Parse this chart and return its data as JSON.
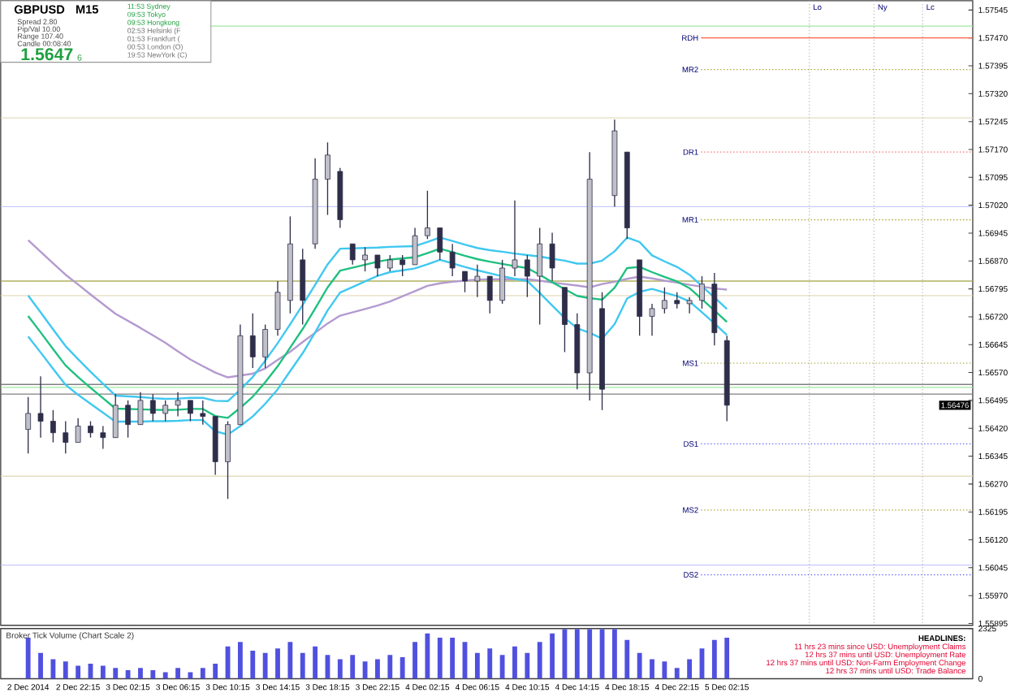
{
  "chart_data": [
    {
      "type": "candlestick",
      "title": "GBPUSD",
      "subtitle": "M15",
      "color": "#2e2e4a",
      "ylim": [
        1.5589,
        1.5757
      ],
      "tick_labels": "y",
      "categories": [
        null,
        null,
        null,
        null,
        null,
        null,
        null,
        null,
        null,
        null,
        null,
        null,
        null,
        null,
        null,
        null,
        null,
        null,
        null,
        null,
        null,
        null,
        null,
        null,
        null,
        null,
        null,
        null,
        null,
        null,
        null,
        null,
        null,
        null,
        null,
        null,
        null,
        null,
        null,
        null,
        null,
        null,
        null,
        null,
        null,
        null,
        null,
        null,
        null,
        null,
        null,
        null,
        null,
        null,
        null,
        null,
        null,
        null,
        null,
        null,
        null,
        null,
        null,
        null,
        null,
        null,
        null,
        null,
        null,
        null,
        null,
        null,
        null,
        null,
        null,
        null
      ],
      "yticks": [
        1.55895,
        {
          "value": 1.5597,
          "label": "1.55970"
        },
        1.56045,
        {
          "value": 1.5612,
          "label": "1.56120"
        },
        1.56195,
        {
          "value": 1.5627,
          "label": "1.56270"
        },
        1.56345,
        {
          "value": 1.5642,
          "label": "1.56420"
        },
        1.56495,
        {
          "value": 1.5657,
          "label": "1.56570"
        },
        1.56645,
        {
          "value": 1.5672,
          "label": "1.56720"
        },
        1.56795,
        {
          "value": 1.5687,
          "label": "1.56870"
        },
        1.56945,
        {
          "value": 1.5702,
          "label": "1.57020"
        },
        1.57095,
        {
          "value": 1.5717,
          "label": "1.57170"
        },
        1.57245,
        {
          "value": 1.5732,
          "label": "1.57320"
        },
        1.57395,
        {
          "value": 1.5747,
          "label": "1.57470"
        },
        1.57545
      ],
      "ohlc": [
        [
          1.56417,
          1.56504,
          1.56352,
          1.5646
        ],
        [
          1.5646,
          1.5656,
          1.56395,
          1.56439
        ],
        [
          1.56439,
          1.56469,
          1.56382,
          1.56408
        ],
        [
          1.56408,
          1.56439,
          1.56352,
          1.56382
        ],
        [
          1.56382,
          1.56447,
          1.56382,
          1.56426
        ],
        [
          1.56426,
          1.56439,
          1.56395,
          1.56408
        ],
        [
          1.56408,
          1.56426,
          1.56365,
          1.56395
        ],
        [
          1.56395,
          1.56512,
          1.56395,
          1.56482
        ],
        [
          1.56482,
          1.56495,
          1.56395,
          1.5643
        ],
        [
          1.5643,
          1.56517,
          1.5643,
          1.56495
        ],
        [
          1.56495,
          1.56512,
          1.56439,
          1.5646
        ],
        [
          1.5646,
          1.56495,
          1.56439,
          1.56482
        ],
        [
          1.56482,
          1.56517,
          1.56452,
          1.56495
        ],
        [
          1.56495,
          1.56495,
          1.56439,
          1.5646
        ],
        [
          1.5646,
          1.56495,
          1.5643,
          1.56452
        ],
        [
          1.56452,
          1.56452,
          1.56295,
          1.5633
        ],
        [
          1.5633,
          1.56439,
          1.5623,
          1.5643
        ],
        [
          1.5643,
          1.56699,
          1.5643,
          1.56669
        ],
        [
          1.56669,
          1.56729,
          1.56582,
          1.56612
        ],
        [
          1.56612,
          1.56699,
          1.56582,
          1.56686
        ],
        [
          1.56686,
          1.56816,
          1.56669,
          1.56786
        ],
        [
          1.56764,
          1.5699,
          1.56729,
          1.56916
        ],
        [
          1.56873,
          1.56903,
          1.56699,
          1.56764
        ],
        [
          1.56916,
          1.57146,
          1.56903,
          1.5709
        ],
        [
          1.5709,
          1.57189,
          1.56994,
          1.57155
        ],
        [
          1.57111,
          1.5712,
          1.56959,
          1.56981
        ],
        [
          1.56916,
          1.56916,
          1.5686,
          1.56873
        ],
        [
          1.56873,
          1.56907,
          1.56842,
          1.56886
        ],
        [
          1.56886,
          1.56886,
          1.56829,
          1.56851
        ],
        [
          1.56851,
          1.56886,
          1.56842,
          1.56873
        ],
        [
          1.56873,
          1.56886,
          1.56829,
          1.5686
        ],
        [
          1.5686,
          1.56959,
          1.5686,
          1.56938
        ],
        [
          1.56938,
          1.57059,
          1.56929,
          1.56959
        ],
        [
          1.56959,
          1.56959,
          1.56873,
          1.56894
        ],
        [
          1.56894,
          1.56916,
          1.56829,
          1.56851
        ],
        [
          1.56842,
          1.56842,
          1.56786,
          1.56816
        ],
        [
          1.56816,
          1.5686,
          1.56773,
          1.56829
        ],
        [
          1.56829,
          1.56829,
          1.56729,
          1.56764
        ],
        [
          1.56764,
          1.56873,
          1.56755,
          1.56851
        ],
        [
          1.56851,
          1.57033,
          1.56829,
          1.56873
        ],
        [
          1.56873,
          1.56886,
          1.56773,
          1.56829
        ],
        [
          1.56829,
          1.56959,
          1.56699,
          1.56916
        ],
        [
          1.56916,
          1.56946,
          1.56816,
          1.56851
        ],
        [
          1.56799,
          1.56799,
          1.56625,
          1.56699
        ],
        [
          1.56699,
          1.56729,
          1.56525,
          1.56569
        ],
        [
          1.56569,
          1.57163,
          1.56495,
          1.5709
        ],
        [
          1.56742,
          1.56786,
          1.56469,
          1.56525
        ],
        [
          1.57046,
          1.5725,
          1.57016,
          1.5722
        ],
        [
          1.57163,
          1.57163,
          1.56929,
          1.56959
        ],
        [
          1.56873,
          1.56873,
          1.56669,
          1.56721
        ],
        [
          1.56721,
          1.56755,
          1.56669,
          1.56742
        ],
        [
          1.56742,
          1.56799,
          1.56729,
          1.56764
        ],
        [
          1.56764,
          1.56786,
          1.56742,
          1.56755
        ],
        [
          1.56755,
          1.56773,
          1.56729,
          1.56764
        ],
        [
          1.56764,
          1.56829,
          1.56742,
          1.56808
        ],
        [
          1.56808,
          1.56838,
          1.56643,
          1.56677
        ],
        [
          1.56656,
          1.56669,
          1.56439,
          1.56482
        ],
        null,
        null,
        null,
        null,
        null,
        null,
        null,
        null,
        null,
        null,
        null,
        null,
        null,
        null,
        null,
        null,
        null,
        null,
        null
      ],
      "series": [
        {
          "type": "line",
          "color": "#b49ad0",
          "values": [
            1.56926,
            1.56895,
            1.56864,
            1.56833,
            1.56807,
            1.5678,
            1.56754,
            1.56728,
            1.56709,
            1.5669,
            1.5667,
            1.5665,
            1.56627,
            1.56605,
            1.56587,
            1.5657,
            1.56557,
            1.56562,
            1.56567,
            1.56581,
            1.56604,
            1.56626,
            1.56652,
            1.56677,
            1.56702,
            1.56723,
            1.56732,
            1.56741,
            1.5675,
            1.56761,
            1.56775,
            1.56789,
            1.56803,
            1.5681,
            1.56814,
            1.56817,
            1.5682,
            1.56821,
            1.56821,
            1.56821,
            1.56821,
            1.56817,
            1.56812,
            1.56808,
            1.56804,
            1.56799,
            1.56808,
            1.56814,
            1.56822,
            1.56828,
            1.56823,
            1.56817,
            1.56812,
            1.56806,
            1.56801,
            1.56796,
            1.56793,
            null,
            null,
            null,
            null,
            null,
            null,
            null,
            null,
            null,
            null,
            null,
            null,
            null,
            null,
            null,
            null,
            null,
            null,
            null
          ]
        },
        {
          "type": "line",
          "color": "#40c8f0",
          "values": [
            1.56777,
            1.56732,
            1.56686,
            1.56641,
            1.56606,
            1.56572,
            1.5654,
            1.56508,
            1.56506,
            1.56504,
            1.56501,
            1.56499,
            1.565,
            1.56502,
            1.56502,
            1.56494,
            1.56493,
            1.56524,
            1.56558,
            1.56602,
            1.56649,
            1.567,
            1.56752,
            1.56806,
            1.56861,
            1.56903,
            1.56904,
            1.56905,
            1.56906,
            1.56908,
            1.56909,
            1.5691,
            1.56921,
            1.56933,
            1.56924,
            1.56914,
            1.56905,
            1.56899,
            1.56895,
            1.5689,
            1.56886,
            1.56882,
            1.56876,
            1.56871,
            1.56863,
            1.56863,
            1.56871,
            1.56896,
            1.56933,
            1.56921,
            1.56885,
            1.56869,
            1.56854,
            1.56833,
            1.56802,
            1.56772,
            1.56741,
            null,
            null,
            null,
            null,
            null,
            null,
            null,
            null,
            null,
            null,
            null,
            null,
            null,
            null,
            null,
            null,
            null,
            null,
            null
          ]
        },
        {
          "type": "line",
          "color": "#40c8f0",
          "values": [
            1.56667,
            1.56624,
            1.5658,
            1.56537,
            1.5651,
            1.56486,
            1.56462,
            1.56438,
            1.56438,
            1.56438,
            1.56439,
            1.56439,
            1.5644,
            1.56442,
            1.56442,
            1.56412,
            1.56403,
            1.56426,
            1.56452,
            1.56486,
            1.56525,
            1.56574,
            1.56622,
            1.56678,
            1.56737,
            1.56785,
            1.568,
            1.56815,
            1.5683,
            1.5684,
            1.56845,
            1.5685,
            1.56861,
            1.56873,
            1.56864,
            1.56854,
            1.56845,
            1.56837,
            1.56829,
            1.56822,
            1.56816,
            1.56784,
            1.5675,
            1.56717,
            1.56689,
            1.56677,
            1.56661,
            1.567,
            1.56769,
            1.56787,
            1.56795,
            1.56785,
            1.56776,
            1.56761,
            1.56732,
            1.56702,
            1.56671,
            null,
            null,
            null,
            null,
            null,
            null,
            null,
            null,
            null,
            null,
            null,
            null,
            null,
            null,
            null,
            null,
            null,
            null,
            null
          ]
        },
        {
          "type": "line",
          "color": "#20c080",
          "values": [
            1.56722,
            1.56678,
            1.56633,
            1.56589,
            1.56558,
            1.56529,
            1.56501,
            1.56473,
            1.56472,
            1.56471,
            1.5647,
            1.56469,
            1.5647,
            1.56472,
            1.56472,
            1.56453,
            1.56448,
            1.56475,
            1.56505,
            1.56544,
            1.56587,
            1.56637,
            1.56687,
            1.56742,
            1.56799,
            1.56844,
            1.56852,
            1.5686,
            1.56868,
            1.56874,
            1.56877,
            1.5688,
            1.56891,
            1.56903,
            1.56894,
            1.56884,
            1.56875,
            1.56868,
            1.56862,
            1.56856,
            1.56851,
            1.56833,
            1.56813,
            1.56794,
            1.56776,
            1.5677,
            1.56766,
            1.56798,
            1.56851,
            1.56854,
            1.5684,
            1.56827,
            1.56815,
            1.56797,
            1.56767,
            1.56737,
            1.56706,
            null,
            null,
            null,
            null,
            null,
            null,
            null,
            null,
            null,
            null,
            null,
            null,
            null,
            null,
            null,
            null,
            null,
            null,
            null
          ]
        }
      ],
      "ref_lines": [
        {
          "axis": "y",
          "value": 1.57502,
          "color": "#a0e8a0",
          "line_style": "solid"
        },
        {
          "axis": "y",
          "value": 1.5747,
          "label": "RDH",
          "color": "#ff6040",
          "line_style": "solid"
        },
        {
          "axis": "y",
          "value": 1.57385,
          "label": "MR2",
          "color": "#a0a020",
          "line_style": "dotted"
        },
        {
          "axis": "y",
          "value": 1.57255,
          "color": "#e6dcc0",
          "line_style": "solid"
        },
        {
          "axis": "y",
          "value": 1.57163,
          "label": "DR1",
          "color": "#ff6060",
          "line_style": "dotted"
        },
        {
          "axis": "y",
          "value": 1.57016,
          "color": "#c8c8ff",
          "line_style": "solid"
        },
        {
          "axis": "y",
          "value": 1.56981,
          "label": "MR1",
          "color": "#a0a020",
          "line_style": "dotted"
        },
        {
          "axis": "y",
          "value": 1.56816,
          "color": "#b0b060",
          "line_style": "solid"
        },
        {
          "axis": "y",
          "value": 1.56777,
          "color": "#e6dcc0",
          "line_style": "solid"
        },
        {
          "axis": "y",
          "value": 1.56595,
          "label": "MS1",
          "color": "#a0a020",
          "line_style": "dotted"
        },
        {
          "axis": "y",
          "value": 1.56538,
          "color": "#808080",
          "line_style": "solid"
        },
        {
          "axis": "y",
          "value": 1.5653,
          "color": "#a0e8a0",
          "line_style": "solid"
        },
        {
          "axis": "y",
          "value": 1.56512,
          "color": "#808080",
          "line_style": "solid"
        },
        {
          "axis": "y",
          "value": 1.56378,
          "label": "DS1",
          "color": "#6060ff",
          "line_style": "dotted"
        },
        {
          "axis": "y",
          "value": 1.56291,
          "color": "#e6dcc0",
          "line_style": "solid"
        },
        {
          "axis": "y",
          "value": 1.562,
          "label": "MS2",
          "color": "#a0a020",
          "line_style": "dotted"
        },
        {
          "axis": "y",
          "value": 1.56052,
          "color": "#c8c8ff",
          "line_style": "solid"
        },
        {
          "axis": "y",
          "value": 1.56026,
          "label": "DS2",
          "color": "#6060ff",
          "line_style": "dotted"
        }
      ],
      "annotations": [
        "Spread 2.80",
        "Pip/Val 10.00",
        "Range 107.40",
        "Candle 00:08:40",
        "1.5647",
        "6",
        "11:53 Sydney",
        "09:53 Tokyo",
        "09:53 Hongkong",
        "02:53 Helsinki (F",
        "01:53 Frankfurt (",
        "00:53 London (O)",
        "19:53 NewYork (C)",
        "1.56476",
        "Lo",
        "Ny",
        "Lc"
      ]
    },
    {
      "type": "bar",
      "title": "Broker Tick Volume (Chart Scale 2)",
      "color": "#5050e0",
      "ylim": [
        0,
        2325
      ],
      "yticks": [
        0,
        2325
      ],
      "categories": [
        "2 Dec 2014",
        null,
        null,
        null,
        "2 Dec 22:15",
        null,
        null,
        null,
        "3 Dec 02:15",
        null,
        null,
        null,
        "3 Dec 06:15",
        null,
        null,
        null,
        "3 Dec 10:15",
        null,
        null,
        null,
        "3 Dec 14:15",
        null,
        null,
        null,
        "3 Dec 18:15",
        null,
        null,
        null,
        "3 Dec 22:15",
        null,
        null,
        null,
        "4 Dec 02:15",
        null,
        null,
        null,
        "4 Dec 06:15",
        null,
        null,
        null,
        "4 Dec 10:15",
        null,
        null,
        null,
        "4 Dec 14:15",
        null,
        null,
        null,
        "4 Dec 18:15",
        null,
        null,
        null,
        "4 Dec 22:15",
        null,
        null,
        null,
        "5 Dec 02:15",
        null,
        null,
        null,
        null,
        null,
        null,
        null,
        null,
        null,
        null,
        null,
        null,
        null,
        null,
        null,
        null,
        null,
        null,
        null
      ],
      "values": [
        1900,
        1200,
        900,
        800,
        600,
        700,
        600,
        500,
        400,
        500,
        400,
        300,
        500,
        300,
        500,
        700,
        1500,
        1700,
        1300,
        1200,
        1400,
        1700,
        1200,
        1500,
        1100,
        900,
        1100,
        800,
        900,
        1100,
        1000,
        1700,
        2100,
        1900,
        1900,
        1700,
        1200,
        1400,
        1100,
        1500,
        1200,
        1700,
        2100,
        2300,
        2300,
        2300,
        2300,
        2300,
        1800,
        1200,
        900,
        800,
        500,
        900,
        1400,
        1800,
        1900,
        null,
        null,
        null,
        null,
        null,
        null,
        null,
        null,
        null,
        null,
        null,
        null,
        null,
        null,
        null,
        null,
        null,
        null,
        null
      ],
      "annotations": [
        "HEADLINES:",
        "11 hrs 23 mins since USD: Unemployment Claims",
        "12 hrs 37 mins until USD: Unemployment Rate",
        "12 hrs 37 mins until USD: Non-Farm Employment Change",
        "12 hrs 37 mins until USD: Trade Balance"
      ]
    }
  ]
}
